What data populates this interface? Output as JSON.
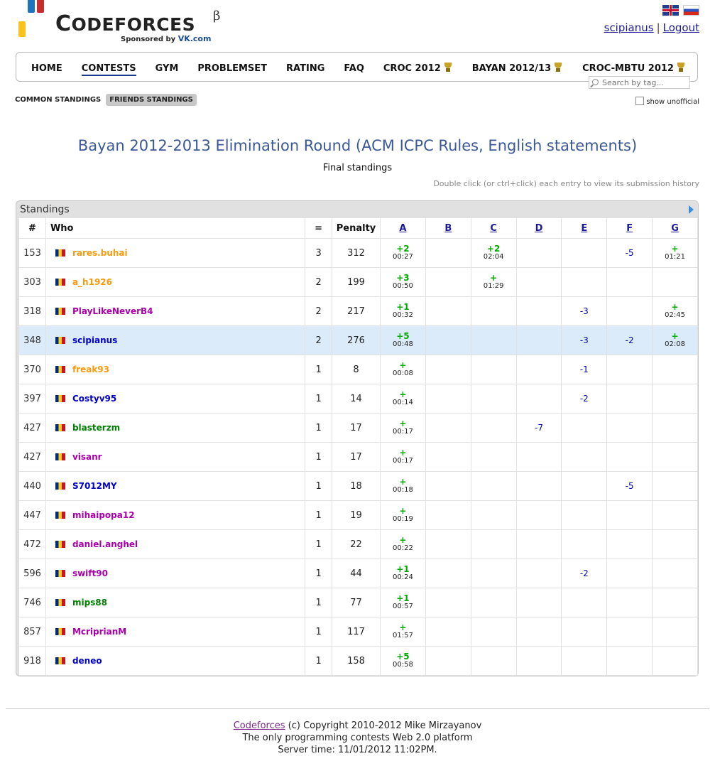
{
  "brand": {
    "name_first": "C",
    "name_rest": "ODEFORCES",
    "beta": "β",
    "sponsor_prefix": "Sponsored by",
    "sponsor": "VK.com"
  },
  "user": {
    "name": "scipianus",
    "separator": "|",
    "logout": "Logout"
  },
  "nav": {
    "items": [
      "HOME",
      "CONTESTS",
      "GYM",
      "PROBLEMSET",
      "RATING",
      "FAQ",
      "CROC 2012",
      "BAYAN 2012/13",
      "CROC-MBTU 2012"
    ],
    "active": "CONTESTS"
  },
  "search": {
    "placeholder": "Search by tag..."
  },
  "subnav": {
    "common": "COMMON STANDINGS",
    "friends": "FRIENDS STANDINGS"
  },
  "unofficial_label": "show unofficial",
  "contest": {
    "title": "Bayan 2012-2013 Elimination Round (ACM ICPC Rules, English statements)",
    "subtitle": "Final standings",
    "hint": "Double click (or ctrl+click) each entry to view its submission history"
  },
  "standings": {
    "caption": "Standings",
    "headers": {
      "rank": "#",
      "who": "Who",
      "solved": "=",
      "penalty": "Penalty"
    },
    "problems": [
      "A",
      "B",
      "C",
      "D",
      "E",
      "F",
      "G"
    ],
    "rows": [
      {
        "rank": "153",
        "who": "rares.buhai",
        "color": "#f79a0d",
        "solved": "3",
        "penalty": "312",
        "cells": [
          [
            "+2",
            "00:27"
          ],
          null,
          [
            "+2",
            "02:04"
          ],
          null,
          null,
          [
            "-5"
          ],
          [
            "+",
            "01:21"
          ]
        ]
      },
      {
        "rank": "303",
        "who": "a_h1926",
        "color": "#f79a0d",
        "solved": "2",
        "penalty": "199",
        "cells": [
          [
            "+3",
            "00:50"
          ],
          null,
          [
            "+",
            "01:29"
          ],
          null,
          null,
          null,
          null
        ]
      },
      {
        "rank": "318",
        "who": "PlayLikeNeverB4",
        "color": "#aa00aa",
        "solved": "2",
        "penalty": "217",
        "cells": [
          [
            "+1",
            "00:32"
          ],
          null,
          null,
          null,
          [
            "-3"
          ],
          null,
          [
            "+",
            "02:45"
          ]
        ]
      },
      {
        "rank": "348",
        "who": "scipianus",
        "color": "#0000cc",
        "solved": "2",
        "penalty": "276",
        "highlight": true,
        "cells": [
          [
            "+5",
            "00:48"
          ],
          null,
          null,
          null,
          [
            "-3"
          ],
          [
            "-2"
          ],
          [
            "+",
            "02:08"
          ]
        ]
      },
      {
        "rank": "370",
        "who": "freak93",
        "color": "#f79a0d",
        "solved": "1",
        "penalty": "8",
        "cells": [
          [
            "+",
            "00:08"
          ],
          null,
          null,
          null,
          [
            "-1"
          ],
          null,
          null
        ]
      },
      {
        "rank": "397",
        "who": "Costyv95",
        "color": "#0000cc",
        "solved": "1",
        "penalty": "14",
        "cells": [
          [
            "+",
            "00:14"
          ],
          null,
          null,
          null,
          [
            "-2"
          ],
          null,
          null
        ]
      },
      {
        "rank": "427",
        "who": "blasterzm",
        "color": "#008000",
        "solved": "1",
        "penalty": "17",
        "cells": [
          [
            "+",
            "00:17"
          ],
          null,
          null,
          [
            "-7"
          ],
          null,
          null,
          null
        ]
      },
      {
        "rank": "427",
        "who": "visanr",
        "color": "#aa00aa",
        "solved": "1",
        "penalty": "17",
        "cells": [
          [
            "+",
            "00:17"
          ],
          null,
          null,
          null,
          null,
          null,
          null
        ]
      },
      {
        "rank": "440",
        "who": "S7012MY",
        "color": "#0000cc",
        "solved": "1",
        "penalty": "18",
        "cells": [
          [
            "+",
            "00:18"
          ],
          null,
          null,
          null,
          null,
          [
            "-5"
          ],
          null
        ]
      },
      {
        "rank": "447",
        "who": "mihaipopa12",
        "color": "#aa00aa",
        "solved": "1",
        "penalty": "19",
        "cells": [
          [
            "+",
            "00:19"
          ],
          null,
          null,
          null,
          null,
          null,
          null
        ]
      },
      {
        "rank": "472",
        "who": "daniel.anghel",
        "color": "#aa00aa",
        "solved": "1",
        "penalty": "22",
        "cells": [
          [
            "+",
            "00:22"
          ],
          null,
          null,
          null,
          null,
          null,
          null
        ]
      },
      {
        "rank": "596",
        "who": "swift90",
        "color": "#aa00aa",
        "solved": "1",
        "penalty": "44",
        "cells": [
          [
            "+1",
            "00:24"
          ],
          null,
          null,
          null,
          [
            "-2"
          ],
          null,
          null
        ]
      },
      {
        "rank": "746",
        "who": "mips88",
        "color": "#008000",
        "solved": "1",
        "penalty": "77",
        "cells": [
          [
            "+1",
            "00:57"
          ],
          null,
          null,
          null,
          null,
          null,
          null
        ]
      },
      {
        "rank": "857",
        "who": "McriprianM",
        "color": "#aa00aa",
        "solved": "1",
        "penalty": "117",
        "cells": [
          [
            "+",
            "01:57"
          ],
          null,
          null,
          null,
          null,
          null,
          null
        ]
      },
      {
        "rank": "918",
        "who": "deneo",
        "color": "#0000cc",
        "solved": "1",
        "penalty": "158",
        "cells": [
          [
            "+5",
            "00:58"
          ],
          null,
          null,
          null,
          null,
          null,
          null
        ]
      }
    ]
  },
  "footer": {
    "link": "Codeforces",
    "copyright": "(c) Copyright 2010-2012 Mike Mirzayanov",
    "line2": "The only programming contests Web 2.0 platform",
    "line3": "Server time: 11/01/2012 11:02PM."
  }
}
